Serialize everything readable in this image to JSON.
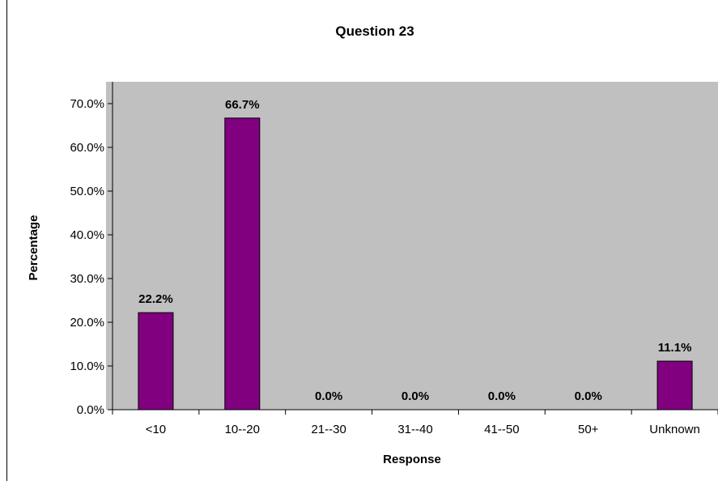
{
  "chart_data": {
    "type": "bar",
    "title": "Question 23",
    "xlabel": "Response",
    "ylabel": "Percentage",
    "categories": [
      "<10",
      "10--20",
      "21--30",
      "31--40",
      "41--50",
      "50+",
      "Unknown"
    ],
    "values": [
      22.2,
      66.7,
      0.0,
      0.0,
      0.0,
      0.0,
      11.1
    ],
    "data_labels": [
      "22.2%",
      "66.7%",
      "0.0%",
      "0.0%",
      "0.0%",
      "0.0%",
      "11.1%"
    ],
    "yticks": [
      "0.0%",
      "10.0%",
      "20.0%",
      "30.0%",
      "40.0%",
      "50.0%",
      "60.0%",
      "70.0%"
    ],
    "ylim": [
      0,
      75
    ],
    "grid": false,
    "legend": "none",
    "colors": {
      "bar": "#800080",
      "plot_background": "#c0c0c0",
      "axis": "#000000"
    }
  }
}
